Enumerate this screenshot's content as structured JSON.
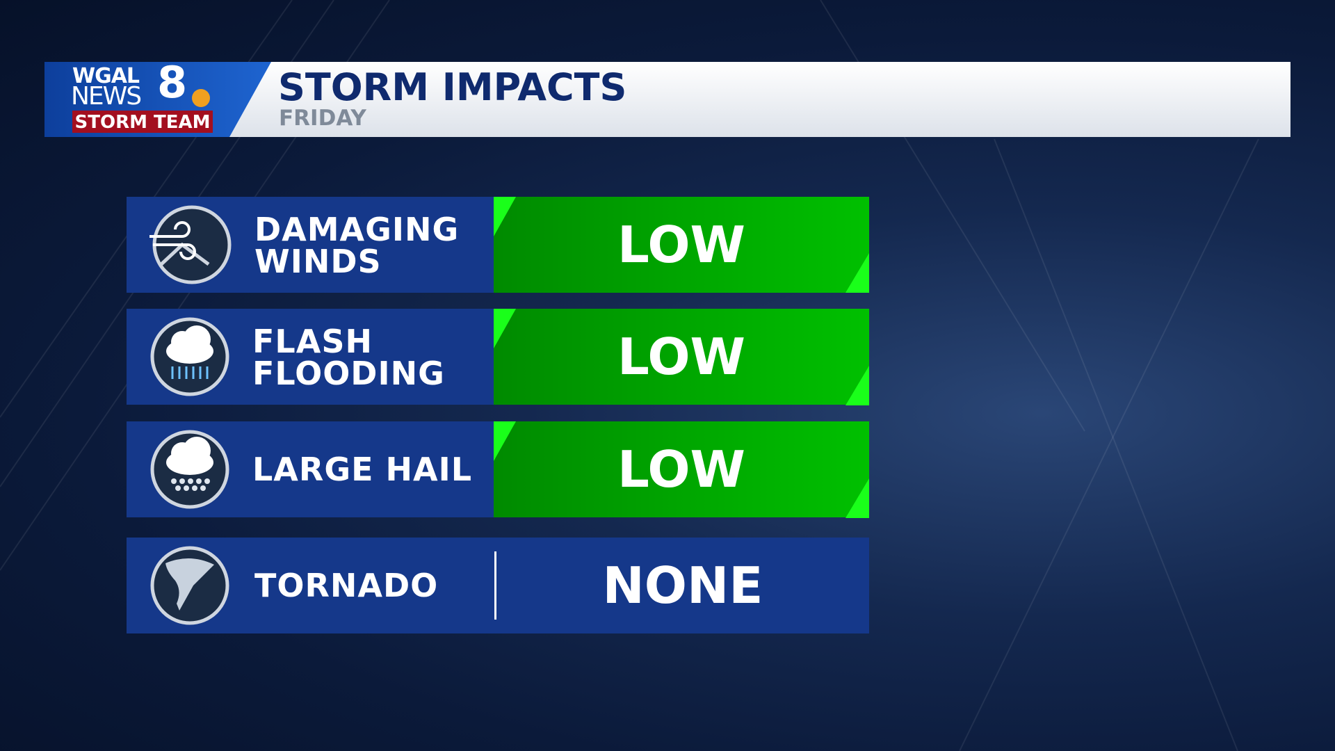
{
  "logo": {
    "station": "WGAL",
    "brand": "NEWS",
    "channel": "8",
    "team": "STORM TEAM"
  },
  "header": {
    "title": "STORM IMPACTS",
    "subtitle": "FRIDAY"
  },
  "rows": [
    {
      "hazard": [
        "DAMAGING",
        "WINDS"
      ],
      "level": "LOW"
    },
    {
      "hazard": [
        "FLASH",
        "FLOODING"
      ],
      "level": "LOW"
    },
    {
      "hazard": [
        "LARGE HAIL"
      ],
      "level": "LOW"
    },
    {
      "hazard": [
        "TORNADO"
      ],
      "level": "NONE"
    }
  ]
}
